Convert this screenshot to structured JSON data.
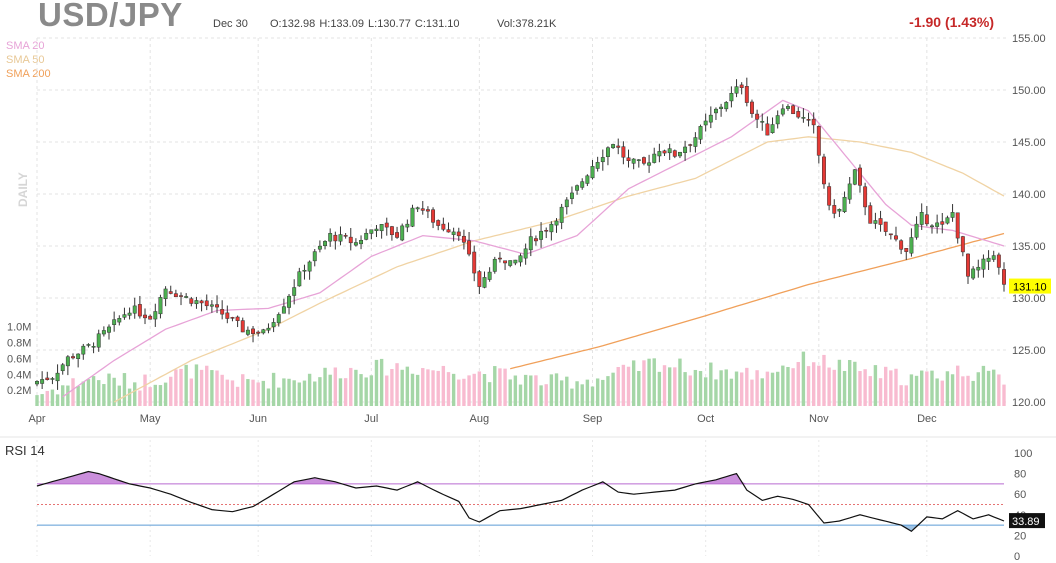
{
  "header": {
    "symbol": "USD/JPY",
    "date": "Dec 30",
    "ohlc": "O:132.98  H:133.09  L:130.77  C:131.10",
    "volume": "Vol:378.21K",
    "change": "-1.90 (1.43%)"
  },
  "legend": {
    "sma20": "SMA 20",
    "sma50": "SMA 50",
    "sma200": "SMA 200",
    "period_label": "DAILY"
  },
  "colors": {
    "up": "#4caf50",
    "down": "#e53935",
    "vol_up": "#a5d6a7",
    "vol_down": "#f8bbd0",
    "sma20": "#e7a3d7",
    "sma50": "#f0d3a4",
    "sma200": "#f0a05a",
    "rsi_line": "#111111",
    "rsi_over": "#b96ad0",
    "rsi_under": "#5b9bd5",
    "last_price_bg": "#ffff00"
  },
  "price_axis": {
    "ticks": [
      "155.00",
      "150.00",
      "145.00",
      "140.00",
      "135.00",
      "130.00",
      "125.00",
      "120.00"
    ],
    "last_price": "131.10"
  },
  "volume_axis": {
    "ticks": [
      "1.0M",
      "0.8M",
      "0.6M",
      "0.4M",
      "0.2M"
    ]
  },
  "x_axis": {
    "ticks": [
      "Apr",
      "May",
      "Jun",
      "Jul",
      "Aug",
      "Sep",
      "Oct",
      "Nov",
      "Dec"
    ]
  },
  "rsi": {
    "label": "RSI 14",
    "ticks": [
      "100",
      "80",
      "60",
      "40",
      "20",
      "0"
    ],
    "last_value": "33.89",
    "overbought": 70,
    "oversold": 30
  },
  "chart_data": {
    "type": "candlestick",
    "title": "USD/JPY",
    "ylim": [
      120,
      155
    ],
    "volume_ylim": [
      0,
      1.3
    ],
    "rsi_ylim": [
      0,
      100
    ],
    "price_path": [
      [
        0,
        122.0
      ],
      [
        3,
        122.5
      ],
      [
        6,
        124.2
      ],
      [
        10,
        125.3
      ],
      [
        14,
        127.0
      ],
      [
        18,
        129.0
      ],
      [
        22,
        128.2
      ],
      [
        25,
        131.0
      ],
      [
        28,
        130.2
      ],
      [
        32,
        129.5
      ],
      [
        36,
        128.5
      ],
      [
        40,
        127.0
      ],
      [
        44,
        126.6
      ],
      [
        48,
        129.5
      ],
      [
        52,
        133.0
      ],
      [
        57,
        136.0
      ],
      [
        62,
        135.3
      ],
      [
        66,
        137.0
      ],
      [
        70,
        136.0
      ],
      [
        74,
        139.0
      ],
      [
        78,
        137.0
      ],
      [
        82,
        136.4
      ],
      [
        86,
        131.2
      ],
      [
        90,
        134.0
      ],
      [
        93,
        133.2
      ],
      [
        96,
        135.5
      ],
      [
        100,
        137.2
      ],
      [
        104,
        139.8
      ],
      [
        108,
        142.8
      ],
      [
        112,
        145.0
      ],
      [
        115,
        143.0
      ],
      [
        118,
        142.8
      ],
      [
        121,
        144.4
      ],
      [
        124,
        143.8
      ],
      [
        128,
        145.5
      ],
      [
        132,
        148.0
      ],
      [
        137,
        150.5
      ],
      [
        139,
        147.8
      ],
      [
        142,
        146.0
      ],
      [
        145,
        148.6
      ],
      [
        148,
        147.6
      ],
      [
        151,
        146.3
      ],
      [
        154,
        138.5
      ],
      [
        156,
        138.4
      ],
      [
        159,
        142.0
      ],
      [
        162,
        137.5
      ],
      [
        166,
        136.0
      ],
      [
        169,
        134.6
      ],
      [
        172,
        137.8
      ],
      [
        176,
        136.8
      ],
      [
        178,
        138.2
      ],
      [
        181,
        132.0
      ],
      [
        183,
        132.8
      ],
      [
        186,
        134.4
      ],
      [
        188,
        131.1
      ]
    ],
    "volume_path": [
      [
        0,
        0.15
      ],
      [
        10,
        0.35
      ],
      [
        20,
        0.3
      ],
      [
        30,
        0.45
      ],
      [
        40,
        0.3
      ],
      [
        50,
        0.35
      ],
      [
        60,
        0.45
      ],
      [
        70,
        0.5
      ],
      [
        80,
        0.45
      ],
      [
        90,
        0.4
      ],
      [
        100,
        0.3
      ],
      [
        110,
        0.35
      ],
      [
        120,
        0.55
      ],
      [
        130,
        0.45
      ],
      [
        140,
        0.4
      ],
      [
        150,
        0.6
      ],
      [
        160,
        0.45
      ],
      [
        170,
        0.35
      ],
      [
        180,
        0.45
      ],
      [
        188,
        0.35
      ]
    ],
    "rsi_path": [
      [
        0,
        68
      ],
      [
        5,
        75
      ],
      [
        10,
        82
      ],
      [
        12,
        80
      ],
      [
        15,
        75
      ],
      [
        18,
        70
      ],
      [
        22,
        66
      ],
      [
        26,
        60
      ],
      [
        30,
        52
      ],
      [
        34,
        45
      ],
      [
        38,
        43
      ],
      [
        42,
        48
      ],
      [
        46,
        60
      ],
      [
        50,
        72
      ],
      [
        54,
        76
      ],
      [
        58,
        72
      ],
      [
        62,
        66
      ],
      [
        66,
        68
      ],
      [
        70,
        64
      ],
      [
        74,
        72
      ],
      [
        78,
        62
      ],
      [
        82,
        53
      ],
      [
        84,
        37
      ],
      [
        86,
        33
      ],
      [
        90,
        44
      ],
      [
        94,
        46
      ],
      [
        98,
        50
      ],
      [
        102,
        54
      ],
      [
        106,
        64
      ],
      [
        110,
        72
      ],
      [
        113,
        62
      ],
      [
        116,
        60
      ],
      [
        120,
        62
      ],
      [
        124,
        64
      ],
      [
        128,
        70
      ],
      [
        132,
        74
      ],
      [
        136,
        80
      ],
      [
        138,
        64
      ],
      [
        141,
        54
      ],
      [
        144,
        58
      ],
      [
        147,
        55
      ],
      [
        150,
        50
      ],
      [
        153,
        32
      ],
      [
        156,
        34
      ],
      [
        160,
        40
      ],
      [
        164,
        35
      ],
      [
        168,
        30
      ],
      [
        170,
        24
      ],
      [
        173,
        38
      ],
      [
        176,
        36
      ],
      [
        179,
        44
      ],
      [
        182,
        36
      ],
      [
        185,
        40
      ],
      [
        188,
        34
      ]
    ],
    "sma20_path": [
      [
        5,
        120.5
      ],
      [
        15,
        124
      ],
      [
        25,
        127
      ],
      [
        35,
        128.8
      ],
      [
        45,
        129
      ],
      [
        55,
        130.5
      ],
      [
        65,
        134
      ],
      [
        75,
        136
      ],
      [
        85,
        135.5
      ],
      [
        95,
        134.2
      ],
      [
        105,
        136
      ],
      [
        115,
        140.5
      ],
      [
        125,
        143
      ],
      [
        135,
        145.5
      ],
      [
        145,
        149
      ],
      [
        150,
        148
      ],
      [
        160,
        142
      ],
      [
        165,
        139
      ],
      [
        170,
        137
      ],
      [
        178,
        136.5
      ],
      [
        188,
        135
      ]
    ],
    "sma50_path": [
      [
        15,
        120
      ],
      [
        30,
        124
      ],
      [
        45,
        127
      ],
      [
        55,
        129.5
      ],
      [
        70,
        133
      ],
      [
        85,
        135.5
      ],
      [
        100,
        137.3
      ],
      [
        115,
        139.8
      ],
      [
        128,
        141.5
      ],
      [
        142,
        145
      ],
      [
        150,
        145.5
      ],
      [
        160,
        145
      ],
      [
        170,
        144
      ],
      [
        180,
        142
      ],
      [
        188,
        139.8
      ]
    ],
    "sma200_path": [
      [
        92,
        123.2
      ],
      [
        110,
        125.4
      ],
      [
        130,
        128.3
      ],
      [
        150,
        131.3
      ],
      [
        170,
        133.8
      ],
      [
        188,
        136.2
      ]
    ]
  }
}
